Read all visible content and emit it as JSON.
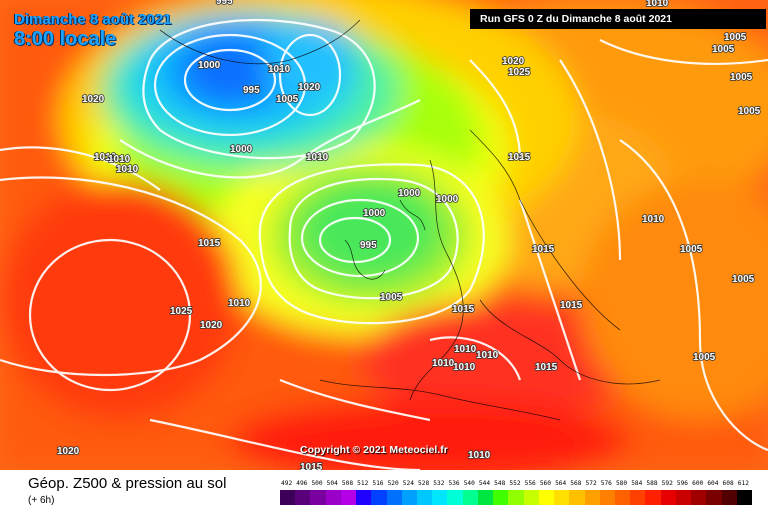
{
  "header": {
    "date_line": "Dimanche 8 août 2021",
    "time_line": "8:00 locale",
    "run_info": "Run GFS 0 Z du Dimanche 8 août 2021"
  },
  "copyright": "Copyright © 2021 Meteociel.fr",
  "footer": {
    "caption": "Géop. Z500 & pression au sol",
    "subcaption": "(+ 6h)"
  },
  "legend": {
    "labels": [
      "492",
      "496",
      "500",
      "504",
      "508",
      "512",
      "516",
      "520",
      "524",
      "528",
      "532",
      "536",
      "540",
      "544",
      "548",
      "552",
      "556",
      "560",
      "564",
      "568",
      "572",
      "576",
      "580",
      "584",
      "588",
      "592",
      "596",
      "600",
      "604",
      "608",
      "612"
    ],
    "colors": [
      "#3c0058",
      "#5a007a",
      "#7a00a0",
      "#9a00c8",
      "#b400e6",
      "#2000ff",
      "#0040ff",
      "#0070ff",
      "#00a0ff",
      "#00c8ff",
      "#00e6ff",
      "#00ffd8",
      "#00ff90",
      "#00e640",
      "#40ff00",
      "#90ff00",
      "#c8ff00",
      "#ffff00",
      "#ffe000",
      "#ffc000",
      "#ffa000",
      "#ff8000",
      "#ff6000",
      "#ff4000",
      "#ff2000",
      "#e60000",
      "#c80000",
      "#a00000",
      "#780000",
      "#500000",
      "#000000"
    ]
  },
  "isobar_labels": [
    {
      "text": "995"
    },
    {
      "text": "1000"
    },
    {
      "text": "1005"
    },
    {
      "text": "1010"
    },
    {
      "text": "1015"
    },
    {
      "text": "1020"
    },
    {
      "text": "1025"
    }
  ]
}
